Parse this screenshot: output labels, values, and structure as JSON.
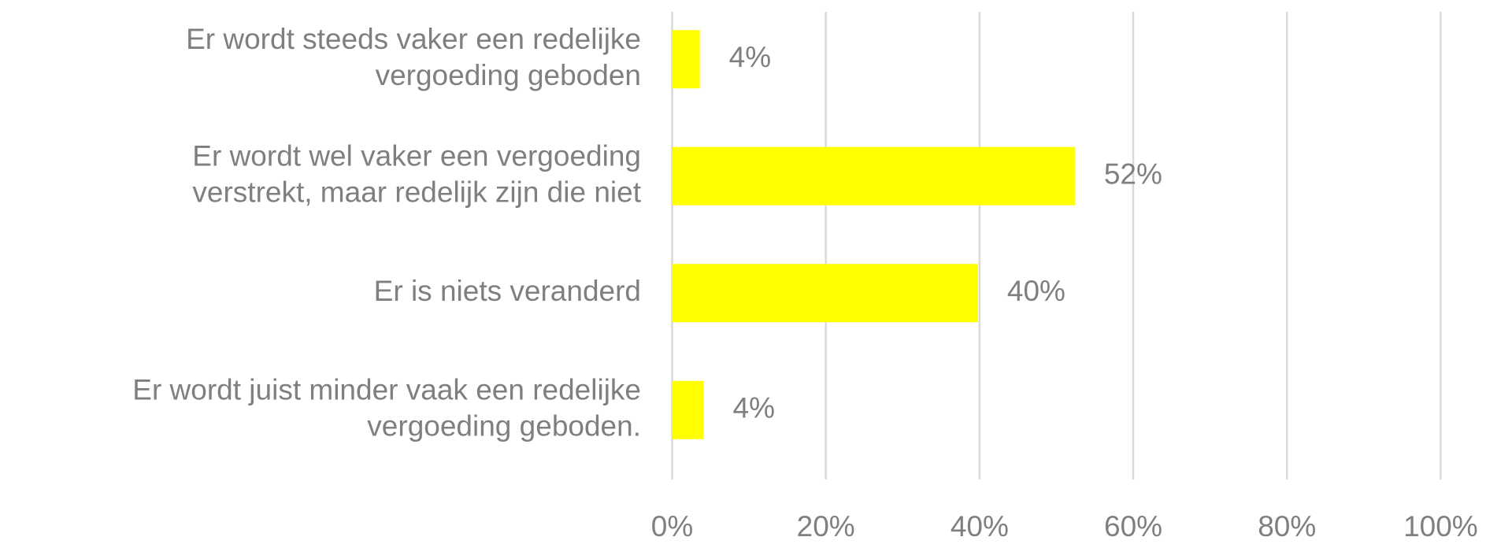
{
  "chart_data": {
    "type": "hbar",
    "categories": [
      [
        "Er wordt steeds vaker een redelijke",
        "vergoeding geboden"
      ],
      [
        "Er wordt wel vaker een vergoeding",
        "verstrekt, maar redelijk zijn die niet"
      ],
      [
        "Er is niets veranderd"
      ],
      [
        "Er wordt juist minder vaak een redelijke",
        "vergoeding geboden."
      ]
    ],
    "values": [
      3.6,
      52.4,
      39.8,
      4.1
    ],
    "value_labels": [
      "4%",
      "52%",
      "40%",
      "4%"
    ],
    "color": "#ffff00",
    "xlim": [
      0,
      100
    ],
    "xticks": [
      {
        "value": 0,
        "label": "0%"
      },
      {
        "value": 20,
        "label": "20%"
      },
      {
        "value": 40,
        "label": "40%"
      },
      {
        "value": 60,
        "label": "60%"
      },
      {
        "value": 80,
        "label": "80%"
      },
      {
        "value": 100,
        "label": "100%"
      }
    ],
    "grid": true
  }
}
